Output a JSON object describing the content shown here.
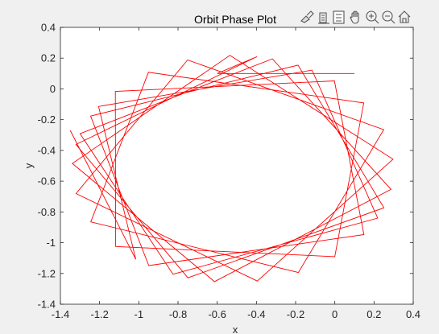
{
  "figure": {
    "toolbar": {
      "icons": [
        "brush-icon",
        "data-tips-icon",
        "insert-legend-icon",
        "pan-icon",
        "zoom-in-icon",
        "zoom-out-icon",
        "home-icon"
      ]
    }
  },
  "chart_data": {
    "type": "line",
    "title": "Orbit Phase Plot",
    "xlabel": "x",
    "ylabel": "y",
    "xlim": [
      -1.4,
      0.4
    ],
    "ylim": [
      -1.4,
      0.4
    ],
    "xticks": [
      "-1.4",
      "-1.2",
      "-1",
      "-0.8",
      "-0.6",
      "-0.4",
      "-0.2",
      "0",
      "0.2",
      "0.4"
    ],
    "yticks": [
      "0.4",
      "0.2",
      "0",
      "-0.2",
      "-0.4",
      "-0.6",
      "-0.8",
      "-1",
      "-1.2",
      "-1.4"
    ],
    "grid": false,
    "line_color": "#ff0000",
    "series": [
      {
        "x": [
          0.1,
          -0.6,
          -1.35
        ],
        "y": [
          0.1,
          0.1,
          -0.27
        ]
      }
    ]
  }
}
